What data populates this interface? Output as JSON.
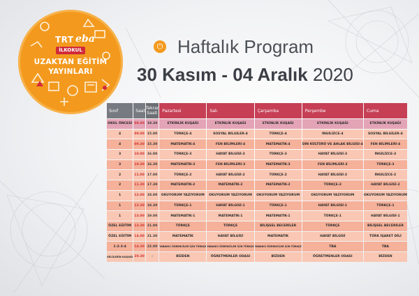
{
  "logo": {
    "brand_trt": "TRT",
    "brand_eba": "eba",
    "badge": "İLKOKUL",
    "line1": "UZAKTAN EĞİTİM",
    "line2": "YAYINLARI"
  },
  "header": {
    "title": "Haftalık Program",
    "date_range": "30 Kasım - 04 Aralık",
    "year": "2020"
  },
  "colors": {
    "header_accent": "#c63f55",
    "header_gray": "#777b81",
    "logo_orange": "#f39a1e",
    "row_light": "#f9c7b3",
    "row_dark": "#f5b19a"
  },
  "table": {
    "headers": {
      "sinif": "Sınıf",
      "saat": "Saat",
      "tekrar_1": "Tekrar",
      "tekrar_2": "Saati",
      "days": [
        "Pazartesi",
        "Salı",
        "Çarşamba",
        "Perşembe",
        "Cuma"
      ]
    },
    "rows": [
      {
        "sinif": "OKUL ÖNCESİ",
        "saat": "08.00",
        "tekrar": "19.30",
        "cells": [
          "ETKİNLİK KUŞAĞI",
          "ETKİNLİK KUŞAĞI",
          "ETKİNLİK KUŞAĞI",
          "ETKİNLİK KUŞAĞI",
          "ETKİNLİK KUŞAĞI"
        ]
      },
      {
        "sinif": "4",
        "saat": "09.00",
        "tekrar": "15.00",
        "cells": [
          "TÜRKÇE-4",
          "SOSYAL BİLGİLER-4",
          "TÜRKÇE-4",
          "İNGİLİZCE-4",
          "SOSYAL BİLGİLER-4"
        ]
      },
      {
        "sinif": "4",
        "saat": "09.30",
        "tekrar": "15.30",
        "cells": [
          "MATEMATİK-4",
          "FEN BİLİMLERİ-4",
          "MATEMATİK-4",
          "DİN KÜLTÜRÜ VE AHLAK BİLGİSİ-4",
          "FEN BİLİMLERİ-4"
        ]
      },
      {
        "sinif": "3",
        "saat": "10.00",
        "tekrar": "16.00",
        "cells": [
          "TÜRKÇE-3",
          "HAYAT BİLGİSİ-3",
          "TÜRKÇE-3",
          "HAYAT BİLGİSİ-3",
          "İNGİLİZCE-3"
        ]
      },
      {
        "sinif": "3",
        "saat": "10.30",
        "tekrar": "16.30",
        "cells": [
          "MATEMATİK-3",
          "FEN BİLİMLERİ-3",
          "MATEMATİK-3",
          "FEN BİLİMLERİ-3",
          "TÜRKÇE-3"
        ]
      },
      {
        "sinif": "2",
        "saat": "11.00",
        "tekrar": "17.00",
        "cells": [
          "TÜRKÇE-2",
          "HAYAT BİLGİSİ-2",
          "TÜRKÇE-2",
          "HAYAT BİLGİSİ-2",
          "İNGİLİZCE-2"
        ]
      },
      {
        "sinif": "2",
        "saat": "11.30",
        "tekrar": "17.30",
        "cells": [
          "MATEMATİK-2",
          "MATEMATİK-2",
          "MATEMATİK-2",
          "TÜRKÇE-2",
          "HAYAT BİLGİSİ-2"
        ]
      },
      {
        "sinif": "1",
        "saat": "12.00",
        "tekrar": "18.00",
        "cells": [
          "OKUYORUM YAZIYORUM",
          "OKUYORUM YAZIYORUM",
          "OKUYORUM YAZIYORUM",
          "OKUYORUM YAZIYORUM",
          "OKUYORUM YAZIYORUM"
        ]
      },
      {
        "sinif": "1",
        "saat": "12.30",
        "tekrar": "18.30",
        "cells": [
          "TÜRKÇE-1",
          "HAYAT BİLGİSİ-1",
          "TÜRKÇE-1",
          "HAYAT BİLGİSİ-1",
          "TÜRKÇE-1"
        ]
      },
      {
        "sinif": "1",
        "saat": "13.00",
        "tekrar": "19.00",
        "cells": [
          "MATEMATİK-1",
          "MATEMATİK-1",
          "MATEMATİK-1",
          "TÜRKÇE-1",
          "HAYAT BİLGİSİ-1"
        ]
      },
      {
        "sinif": "ÖZEL EĞİTİM",
        "saat": "13.30",
        "tekrar": "21.00",
        "cells": [
          "TÜRKÇE",
          "TÜRKÇE",
          "BİLİŞSEL BECERİLER",
          "TÜRKÇE",
          "BİLİŞSEL BECERİLER"
        ]
      },
      {
        "sinif": "ÖZEL EĞİTİM",
        "saat": "14.00",
        "tekrar": "21.30",
        "cells": [
          "MATEMATİK",
          "HAYAT BİLGİSİ",
          "MATEMATİK",
          "HAYAT BİLGİSİ",
          "TÜRK İŞARET DİLİ"
        ]
      },
      {
        "sinif": "1-2-3-4",
        "saat": "14.30",
        "tekrar": "22.00",
        "cells": [
          "YABANCI ÖĞRENCİLER İÇİN TÜRKÇE",
          "YABANCI ÖĞRENCİLER İÇİN TÜRKÇE",
          "YABANCI ÖĞRENCİLER İÇİN TÜRKÇE",
          "TBA",
          "TBA"
        ]
      },
      {
        "sinif": "VELİLERİN KUŞAĞI",
        "saat": "20.30",
        "tekrar": "-",
        "cells": [
          "BİZDEN",
          "ÖĞRETMENLER ODASI",
          "BİZDEN",
          "ÖĞRETMENLER ODASI",
          "BİZDEN"
        ]
      }
    ]
  }
}
